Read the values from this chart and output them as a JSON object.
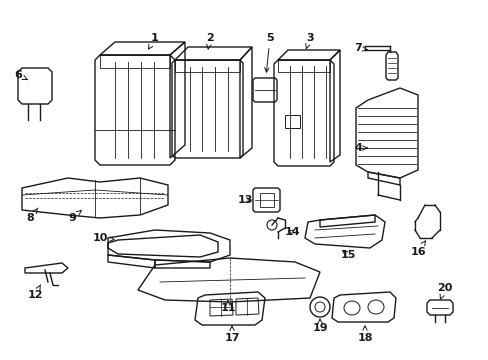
{
  "background_color": "#ffffff",
  "line_color": "#1a1a1a",
  "figsize": [
    4.89,
    3.6
  ],
  "dpi": 100,
  "xlim": [
    0,
    489
  ],
  "ylim": [
    0,
    360
  ]
}
